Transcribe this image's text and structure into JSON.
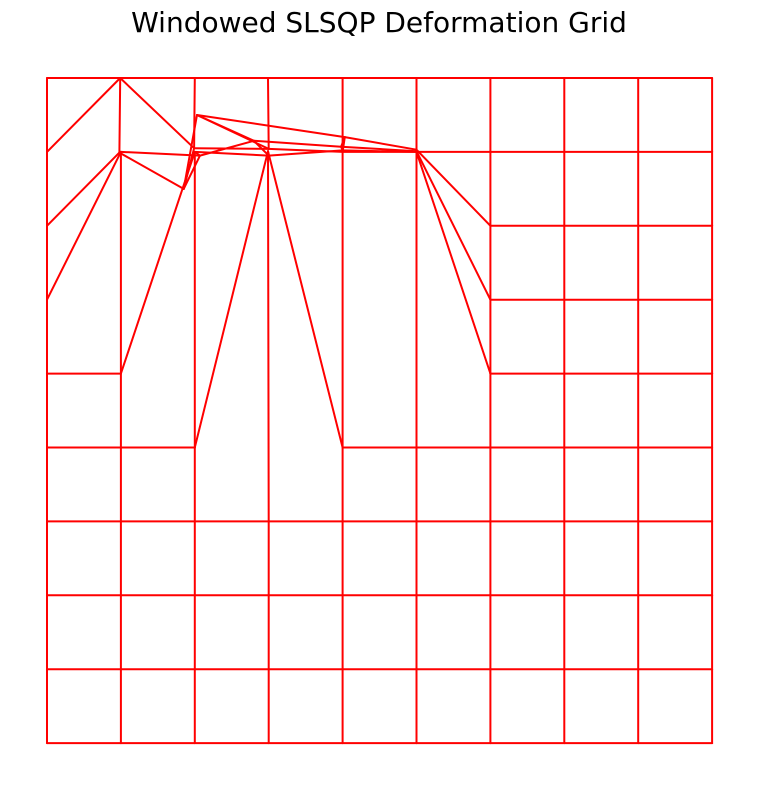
{
  "title": "Windowed SLSQP Deformation Grid",
  "line_color": "#ff0000",
  "background": "#ffffff",
  "grid": {
    "rows": 10,
    "cols": 10,
    "extent": [
      0,
      9
    ],
    "displaced_nodes": [
      {
        "i": 0,
        "j": 1,
        "x": 1.0,
        "y": 0.0
      },
      {
        "i": 1,
        "j": 1,
        "x": 0.99,
        "y": 0.0
      },
      {
        "i": 2,
        "j": 1,
        "x": 0.98,
        "y": 1.01
      },
      {
        "i": 3,
        "j": 1,
        "x": 1.0,
        "y": 1.0
      },
      {
        "i": 1,
        "j": 2,
        "x": 1.99,
        "y": 0.95
      },
      {
        "i": 2,
        "j": 2,
        "x": 1.85,
        "y": 1.5
      },
      {
        "i": 3,
        "j": 2,
        "x": 2.07,
        "y": 1.05
      },
      {
        "i": 4,
        "j": 2,
        "x": 2.0,
        "y": 1.0
      },
      {
        "i": 0,
        "j": 3,
        "x": 2.99,
        "y": 0.0
      },
      {
        "i": 1,
        "j": 3,
        "x": 3.0,
        "y": 0.96
      },
      {
        "i": 2,
        "j": 3,
        "x": 2.03,
        "y": 0.5
      },
      {
        "i": 3,
        "j": 3,
        "x": 2.8,
        "y": 0.85
      },
      {
        "i": 4,
        "j": 3,
        "x": 3.0,
        "y": 1.05
      },
      {
        "i": 5,
        "j": 3,
        "x": 2.99,
        "y": 0.99
      },
      {
        "i": 1,
        "j": 4,
        "x": 4.0,
        "y": 1.0
      },
      {
        "i": 2,
        "j": 4,
        "x": 4.03,
        "y": 0.8
      },
      {
        "i": 3,
        "j": 4,
        "x": 3.98,
        "y": 0.93
      },
      {
        "i": 4,
        "j": 4,
        "x": 4.0,
        "y": 0.98
      },
      {
        "i": 2,
        "j": 5,
        "x": 5.0,
        "y": 0.97
      },
      {
        "i": 3,
        "j": 5,
        "x": 5.0,
        "y": 0.99
      },
      {
        "i": 4,
        "j": 5,
        "x": 5.0,
        "y": 1.0
      }
    ]
  }
}
